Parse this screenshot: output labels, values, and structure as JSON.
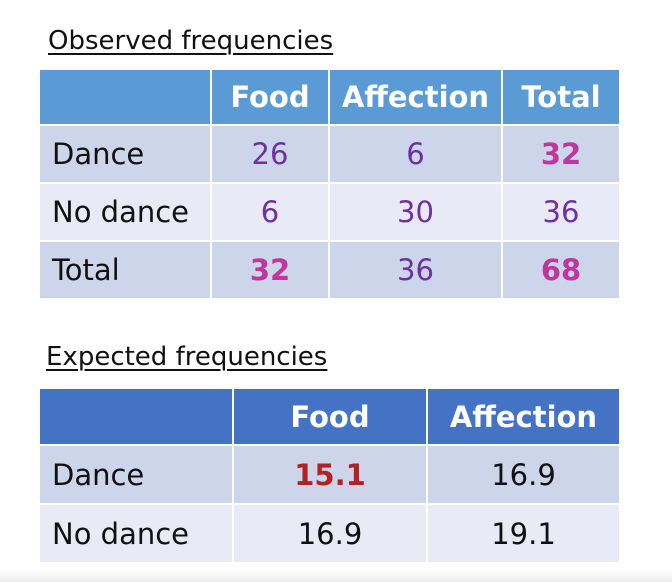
{
  "observed": {
    "heading": "Observed frequencies",
    "columns": [
      "Food",
      "Affection",
      "Total"
    ],
    "rows": [
      {
        "label": "Dance",
        "values": [
          "26",
          "6",
          "32"
        ]
      },
      {
        "label": "No dance",
        "values": [
          "6",
          "30",
          "36"
        ]
      },
      {
        "label": "Total",
        "values": [
          "32",
          "36",
          "68"
        ]
      }
    ]
  },
  "expected": {
    "heading": "Expected frequencies",
    "columns": [
      "Food",
      "Affection"
    ],
    "rows": [
      {
        "label": "Dance",
        "values": [
          "15.1",
          "16.9"
        ]
      },
      {
        "label": "No dance",
        "values": [
          "16.9",
          "19.1"
        ]
      }
    ]
  },
  "colors": {
    "observed_header_bg": "#5b9bd5",
    "expected_header_bg": "#4472c4",
    "row_dark_bg": "#cdd5ea",
    "row_light_bg": "#e8ebf5",
    "observed_value": "#7030a0",
    "observed_highlight": "#c0369c",
    "expected_highlight": "#b22222"
  }
}
